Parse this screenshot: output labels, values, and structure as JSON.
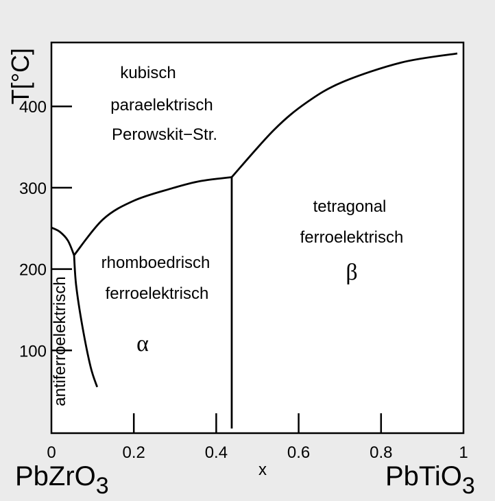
{
  "chart_data": {
    "type": "line",
    "title": "",
    "xlabel": "x",
    "ylabel": "T[°C]",
    "xlim": [
      0,
      1
    ],
    "ylim": [
      0,
      478
    ],
    "x_ticks": [
      "0",
      "0.2",
      "0.4",
      "0.6",
      "0.8",
      "1"
    ],
    "x_tick_values": [
      0,
      0.2,
      0.4,
      0.6,
      0.8,
      1
    ],
    "y_ticks": [
      "100",
      "200",
      "300",
      "400"
    ],
    "y_tick_values": [
      100,
      200,
      300,
      400
    ],
    "x_end_labels": {
      "left": "PbZrO",
      "left_sub": "3",
      "right": "PbTiO",
      "right_sub": "3"
    },
    "grid": false,
    "series": [
      {
        "points": [
          [
            0,
            251
          ],
          [
            0.02,
            246
          ],
          [
            0.04,
            235
          ],
          [
            0.055,
            217
          ]
        ]
      },
      {
        "points": [
          [
            0.055,
            217
          ],
          [
            0.125,
            261
          ],
          [
            0.2,
            284
          ],
          [
            0.291,
            299
          ],
          [
            0.36,
            308
          ],
          [
            0.4376,
            313
          ]
        ]
      },
      {
        "points": [
          [
            0.4376,
            313
          ],
          [
            0.54,
            371
          ],
          [
            0.62,
            405
          ],
          [
            0.707,
            430
          ],
          [
            0.85,
            454
          ],
          [
            0.985,
            465
          ]
        ]
      },
      {
        "points": [
          [
            0.055,
            217
          ],
          [
            0.06,
            180
          ],
          [
            0.075,
            130
          ],
          [
            0.095,
            80
          ],
          [
            0.111,
            55
          ]
        ]
      },
      {
        "points": [
          [
            0.4376,
            313
          ],
          [
            0.4376,
            4
          ]
        ]
      }
    ],
    "annotations": [
      {
        "lines": [
          "kubisch",
          "paraelektrisch",
          "Perowskit−Str."
        ]
      },
      {
        "lines": [
          "rhomboedrisch",
          "ferroelektrisch"
        ]
      },
      {
        "lines": [
          "tetragonal",
          "ferroelektrisch"
        ]
      },
      {
        "lines": [
          "antiferroelektrisch"
        ]
      },
      {
        "lines": [
          "α"
        ]
      },
      {
        "lines": [
          "β"
        ]
      }
    ]
  }
}
